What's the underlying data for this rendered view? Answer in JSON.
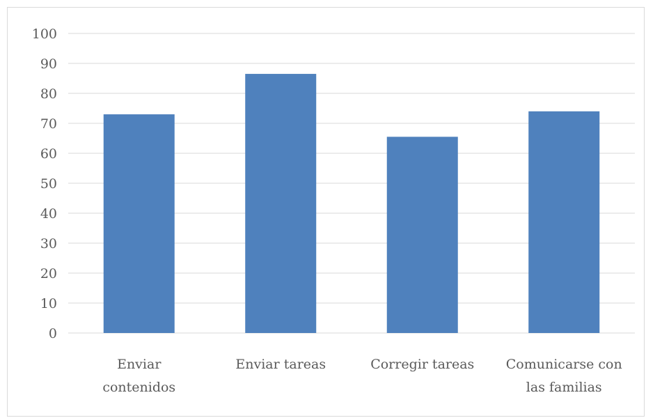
{
  "chart_data": {
    "type": "bar",
    "title": "",
    "xlabel": "",
    "ylabel": "",
    "categories": [
      [
        "Enviar",
        "contenidos"
      ],
      [
        "Enviar tareas"
      ],
      [
        "Corregir tareas"
      ],
      [
        "Comunicarse con",
        "las familias"
      ]
    ],
    "values": [
      73,
      86.5,
      65.5,
      74
    ],
    "ylim": [
      0,
      100
    ],
    "yticks": [
      "0",
      "10",
      "20",
      "30",
      "40",
      "50",
      "60",
      "70",
      "80",
      "90",
      "100"
    ],
    "grid": true,
    "legend": "none",
    "colors": {
      "bar": "#4F81BD",
      "grid": "#d9d9d9",
      "text": "#595959",
      "frame": "#d9d9d9"
    }
  }
}
